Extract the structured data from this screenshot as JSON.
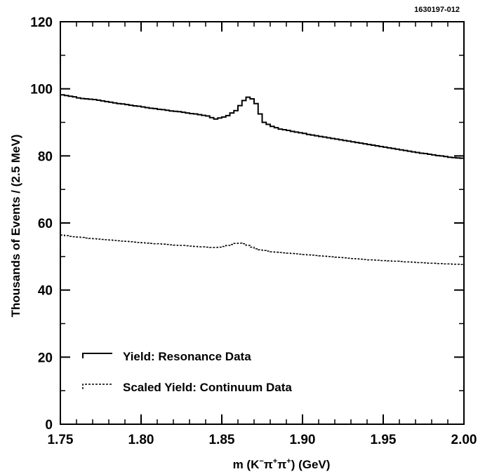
{
  "figure_id": "1630197-012",
  "chart_data": {
    "type": "line",
    "title": "",
    "xlabel_parts": {
      "prefix": "m (K",
      "sup1": "−",
      "mid1": "π",
      "sup2": "+",
      "mid2": "π",
      "sup3": "+",
      "suffix": ") (GeV)"
    },
    "ylabel": "Thousands of Events / (2.5 MeV)",
    "xlim": [
      1.75,
      2.0
    ],
    "ylim": [
      0,
      120
    ],
    "x_ticks": [
      "1.75",
      "1.80",
      "1.85",
      "1.90",
      "1.95",
      "2.00"
    ],
    "y_ticks": [
      "0",
      "20",
      "40",
      "60",
      "80",
      "100",
      "120"
    ],
    "grid": false,
    "legend_position": "bottom-left",
    "series": [
      {
        "name": "Yield: Resonance Data",
        "style": "solid",
        "color": "#000000",
        "x_start": 1.75,
        "bin_width": 0.0025,
        "values": [
          98.2,
          98.0,
          97.8,
          97.6,
          97.3,
          97.1,
          97.0,
          96.9,
          96.8,
          96.6,
          96.4,
          96.2,
          96.0,
          95.8,
          95.6,
          95.5,
          95.3,
          95.1,
          94.9,
          94.8,
          94.6,
          94.4,
          94.2,
          94.1,
          93.9,
          93.8,
          93.6,
          93.4,
          93.3,
          93.2,
          93.0,
          92.8,
          92.6,
          92.5,
          92.3,
          92.1,
          91.9,
          91.4,
          91.0,
          91.3,
          91.6,
          92.0,
          92.8,
          93.5,
          95.0,
          96.5,
          97.5,
          97.0,
          95.6,
          92.5,
          90.0,
          89.4,
          88.8,
          88.4,
          88.0,
          87.8,
          87.6,
          87.3,
          87.1,
          86.9,
          86.7,
          86.4,
          86.2,
          86.0,
          85.8,
          85.6,
          85.4,
          85.2,
          85.0,
          84.8,
          84.6,
          84.4,
          84.2,
          84.0,
          83.8,
          83.6,
          83.4,
          83.2,
          83.0,
          82.8,
          82.6,
          82.4,
          82.2,
          82.0,
          81.8,
          81.6,
          81.4,
          81.2,
          81.0,
          80.8,
          80.7,
          80.5,
          80.3,
          80.1,
          80.0,
          79.8,
          79.6,
          79.5,
          79.4,
          79.3
        ]
      },
      {
        "name": "Scaled Yield: Continuum Data",
        "style": "dashed",
        "color": "#000000",
        "x_start": 1.75,
        "bin_width": 0.0025,
        "values": [
          56.4,
          56.2,
          56.0,
          55.9,
          55.8,
          55.7,
          55.5,
          55.4,
          55.3,
          55.2,
          55.1,
          55.0,
          54.9,
          54.8,
          54.7,
          54.6,
          54.5,
          54.4,
          54.3,
          54.2,
          54.1,
          54.0,
          53.9,
          53.8,
          53.8,
          53.7,
          53.6,
          53.5,
          53.4,
          53.3,
          53.3,
          53.2,
          53.1,
          53.0,
          52.9,
          52.9,
          52.8,
          52.7,
          52.7,
          52.8,
          53.0,
          53.3,
          53.6,
          53.9,
          54.0,
          53.8,
          53.3,
          52.8,
          52.3,
          52.0,
          51.8,
          51.6,
          51.4,
          51.3,
          51.2,
          51.1,
          51.0,
          50.9,
          50.8,
          50.7,
          50.6,
          50.5,
          50.4,
          50.3,
          50.2,
          50.1,
          50.0,
          49.9,
          49.8,
          49.7,
          49.6,
          49.5,
          49.4,
          49.3,
          49.2,
          49.1,
          49.0,
          49.0,
          48.9,
          48.8,
          48.8,
          48.7,
          48.6,
          48.6,
          48.5,
          48.4,
          48.4,
          48.3,
          48.2,
          48.2,
          48.1,
          48.0,
          48.0,
          47.9,
          47.9,
          47.8,
          47.8,
          47.7,
          47.7,
          47.6
        ]
      }
    ]
  }
}
